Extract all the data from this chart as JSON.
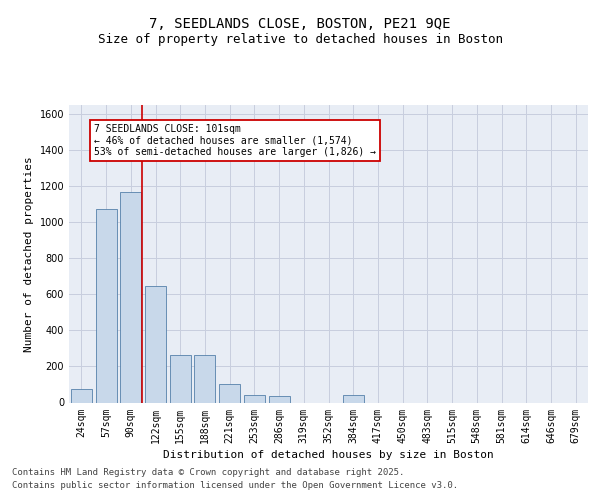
{
  "title_line1": "7, SEEDLANDS CLOSE, BOSTON, PE21 9QE",
  "title_line2": "Size of property relative to detached houses in Boston",
  "xlabel": "Distribution of detached houses by size in Boston",
  "ylabel": "Number of detached properties",
  "categories": [
    "24sqm",
    "57sqm",
    "90sqm",
    "122sqm",
    "155sqm",
    "188sqm",
    "221sqm",
    "253sqm",
    "286sqm",
    "319sqm",
    "352sqm",
    "384sqm",
    "417sqm",
    "450sqm",
    "483sqm",
    "515sqm",
    "548sqm",
    "581sqm",
    "614sqm",
    "646sqm",
    "679sqm"
  ],
  "values": [
    75,
    1075,
    1170,
    645,
    265,
    265,
    100,
    40,
    35,
    0,
    0,
    40,
    0,
    0,
    0,
    0,
    0,
    0,
    0,
    0,
    0
  ],
  "ylim": [
    0,
    1650
  ],
  "yticks": [
    0,
    200,
    400,
    600,
    800,
    1000,
    1200,
    1400,
    1600
  ],
  "bar_color": "#c8d8ea",
  "bar_edge_color": "#5580aa",
  "grid_color": "#c8cede",
  "background_color": "#e8edf5",
  "annotation_text": "7 SEEDLANDS CLOSE: 101sqm\n← 46% of detached houses are smaller (1,574)\n53% of semi-detached houses are larger (1,826) →",
  "vline_x": 2.45,
  "vline_color": "#cc0000",
  "annotation_box_facecolor": "#ffffff",
  "annotation_box_edgecolor": "#cc0000",
  "footer_line1": "Contains HM Land Registry data © Crown copyright and database right 2025.",
  "footer_line2": "Contains public sector information licensed under the Open Government Licence v3.0.",
  "title_fontsize": 10,
  "subtitle_fontsize": 9,
  "axis_label_fontsize": 8,
  "tick_fontsize": 7,
  "annotation_fontsize": 7,
  "footer_fontsize": 6.5
}
